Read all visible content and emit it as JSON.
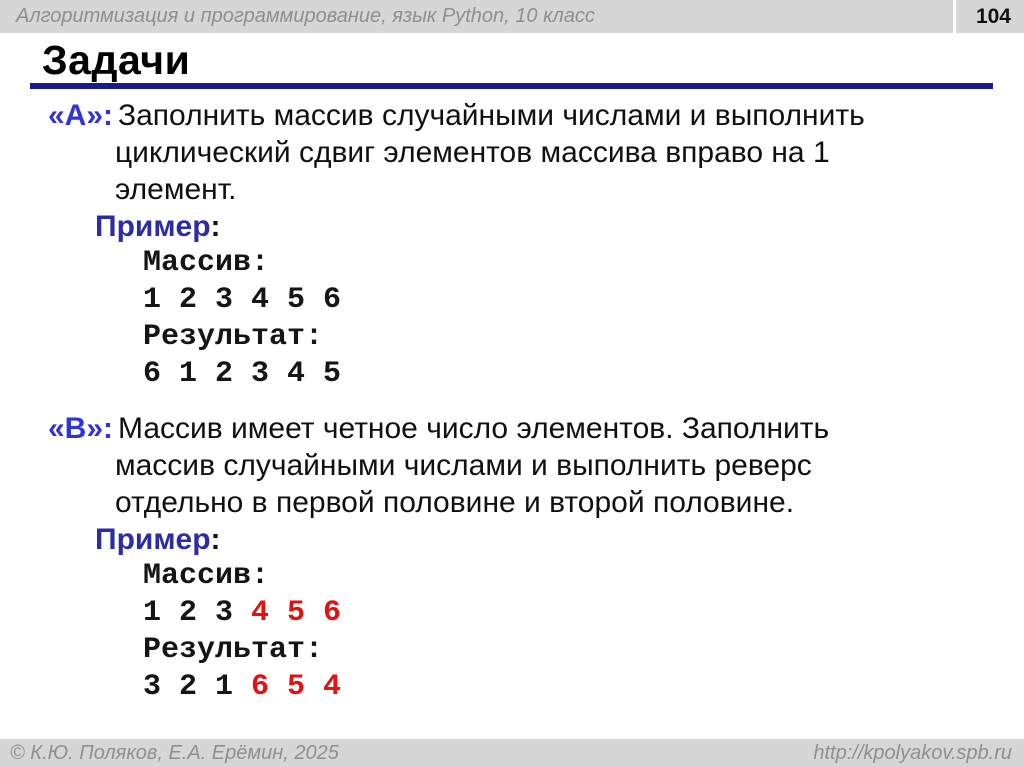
{
  "header": {
    "course_title": "Алгоритмизация и программирование, язык Python, 10 класс",
    "page_number": "104"
  },
  "slide": {
    "title": "Задачи"
  },
  "colors": {
    "bar_background": "#d6d6d6",
    "bar_text_gray": "#8f8f8f",
    "label_blue": "#3333d6",
    "example_blue": "#2d2da3",
    "rule_navy": "#1a1a8c",
    "highlight_red": "#e01212",
    "body_text": "#101010"
  },
  "sections": [
    {
      "label": "«A»:",
      "description_lines": [
        "Заполнить массив случайными числами и выполнить",
        "циклический сдвиг элементов массива вправо на 1",
        "элемент."
      ],
      "example_label": "Пример",
      "example_colon": ":",
      "code_lines": [
        {
          "parts": [
            {
              "text": "Массив:",
              "color": "default"
            }
          ]
        },
        {
          "parts": [
            {
              "text": "1 2 3 4 5 6",
              "color": "default"
            }
          ]
        },
        {
          "parts": [
            {
              "text": "Результат:",
              "color": "default"
            }
          ]
        },
        {
          "parts": [
            {
              "text": "6 1 2 3 4 5",
              "color": "default"
            }
          ]
        }
      ]
    },
    {
      "label": "«B»:",
      "description_lines": [
        "Массив имеет четное число элементов. Заполнить",
        "массив случайными числами и выполнить реверс",
        "отдельно в первой половине и второй половине."
      ],
      "example_label": "Пример",
      "example_colon": ":",
      "code_lines": [
        {
          "parts": [
            {
              "text": "Массив:",
              "color": "default"
            }
          ]
        },
        {
          "parts": [
            {
              "text": "1 2 3 ",
              "color": "default"
            },
            {
              "text": "4 5 6",
              "color": "red"
            }
          ]
        },
        {
          "parts": [
            {
              "text": "Результат:",
              "color": "default"
            }
          ]
        },
        {
          "parts": [
            {
              "text": "3 2 1 ",
              "color": "default"
            },
            {
              "text": "6 5 4",
              "color": "red"
            }
          ]
        }
      ]
    }
  ],
  "footer": {
    "copyright": "© К.Ю. Поляков, Е.А. Ерёмин, 2025",
    "url": "http://kpolyakov.spb.ru"
  }
}
